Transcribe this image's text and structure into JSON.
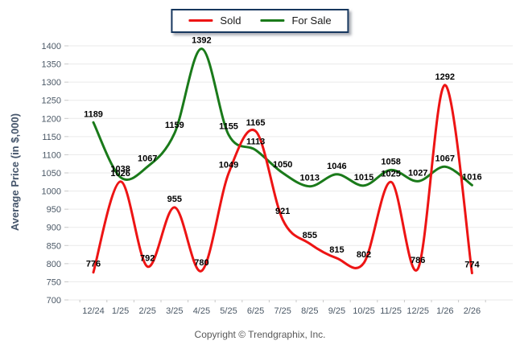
{
  "legend": {
    "items": [
      {
        "label": "Sold"
      },
      {
        "label": "For Sale"
      }
    ]
  },
  "axis": {
    "y_title": "Average Price (in $,000)"
  },
  "footer": {
    "text": "Copyright © Trendgraphix, Inc."
  },
  "colors": {
    "sold_line": "#ed1414",
    "for_sale_line": "#1a7a1a",
    "legend_border": "#17375e",
    "grid_line": "#eaeaea",
    "axis_tick": "#c8c8c8",
    "tick_text": "#4b5866",
    "data_label": "#000000",
    "y_title_text": "#44546a",
    "footer_text": "#595959"
  },
  "chart_data": {
    "type": "line",
    "title": "",
    "xlabel": "",
    "ylabel": "Average Price (in $,000)",
    "ylim": [
      700,
      1400
    ],
    "ytick_step": 50,
    "grid": true,
    "legend_position": "top-center",
    "categories": [
      "12/24",
      "1/25",
      "2/25",
      "3/25",
      "4/25",
      "5/25",
      "6/25",
      "7/25",
      "8/25",
      "9/25",
      "10/25",
      "11/25",
      "12/25",
      "1/26",
      "2/26"
    ],
    "series": [
      {
        "name": "Sold",
        "color": "#ed1414",
        "values": [
          776,
          1026,
          792,
          955,
          780,
          1049,
          1165,
          921,
          855,
          815,
          802,
          1025,
          786,
          1292,
          774
        ]
      },
      {
        "name": "For Sale",
        "color": "#1a7a1a",
        "values": [
          1189,
          1038,
          1067,
          1159,
          1392,
          1155,
          1113,
          1050,
          1013,
          1046,
          1015,
          1058,
          1027,
          1067,
          1016
        ]
      }
    ]
  }
}
